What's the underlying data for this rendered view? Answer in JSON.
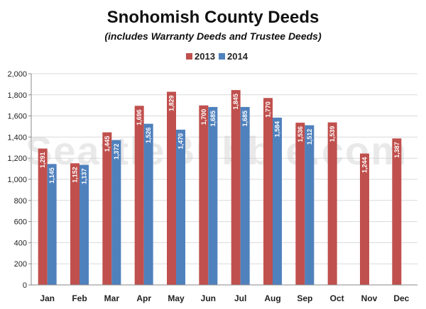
{
  "watermark": "SeattleBubble.com",
  "chart_data": {
    "type": "bar",
    "title": "Snohomish County Deeds",
    "subtitle": "(includes Warranty Deeds and Trustee Deeds)",
    "xlabel": "",
    "ylabel": "",
    "ylim": [
      0,
      2000
    ],
    "yticks": [
      0,
      200,
      400,
      600,
      800,
      1000,
      1200,
      1400,
      1600,
      1800,
      2000
    ],
    "ytick_labels": [
      "0",
      "200",
      "400",
      "600",
      "800",
      "1,000",
      "1,200",
      "1,400",
      "1,600",
      "1,800",
      "2,000"
    ],
    "grid": true,
    "legend_position": "top-center",
    "categories": [
      "Jan",
      "Feb",
      "Mar",
      "Apr",
      "May",
      "Jun",
      "Jul",
      "Aug",
      "Sep",
      "Oct",
      "Nov",
      "Dec"
    ],
    "series": [
      {
        "name": "2013",
        "color": "#c0504d",
        "values": [
          1291,
          1152,
          1445,
          1696,
          1829,
          1700,
          1845,
          1770,
          1536,
          1539,
          1244,
          1387
        ],
        "labels": [
          "1,291",
          "1,152",
          "1,445",
          "1,696",
          "1,829",
          "1,700",
          "1,845",
          "1,770",
          "1,536",
          "1,539",
          "1,244",
          "1,387"
        ]
      },
      {
        "name": "2014",
        "color": "#4f81bd",
        "values": [
          1145,
          1137,
          1372,
          1526,
          1470,
          1685,
          1685,
          1584,
          1512,
          null,
          null,
          null
        ],
        "labels": [
          "1,145",
          "1,137",
          "1,372",
          "1,526",
          "1,470",
          "1,685",
          "1,685",
          "1,584",
          "1,512",
          "",
          "",
          ""
        ]
      }
    ]
  }
}
